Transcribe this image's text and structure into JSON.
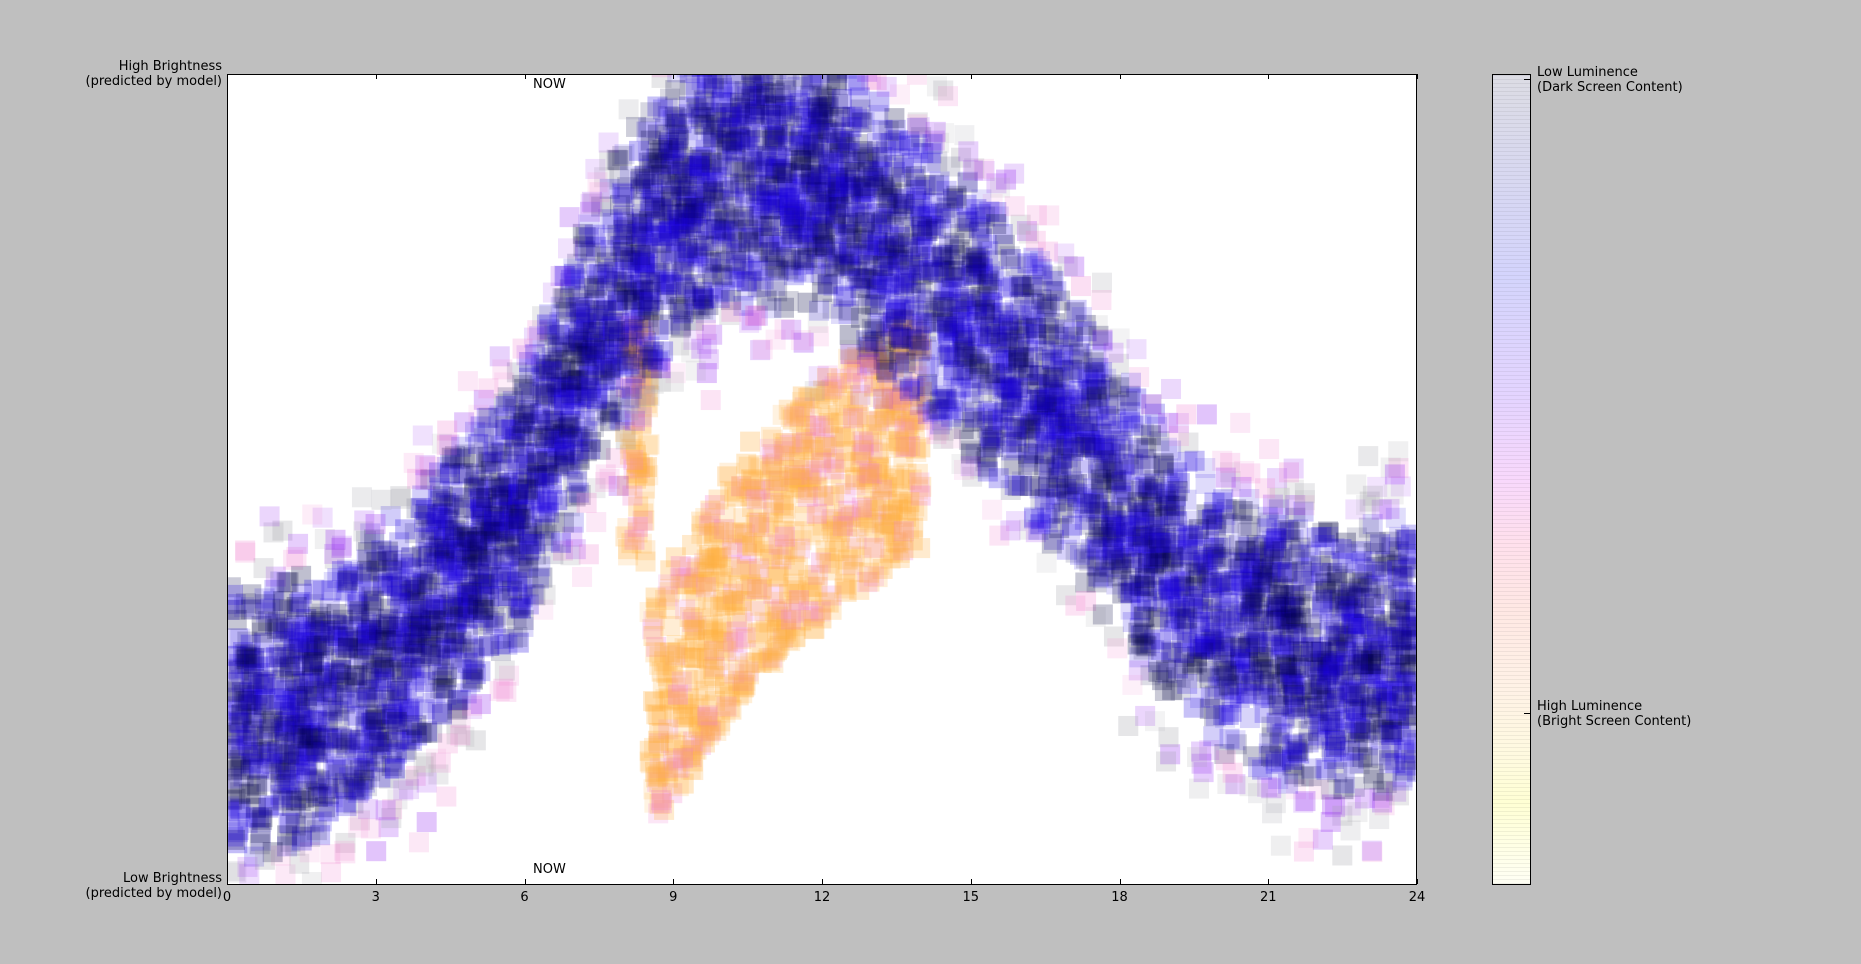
{
  "chart_data": {
    "type": "heatmap",
    "xlim": [
      0,
      24
    ],
    "xticks": [
      "0",
      "3",
      "6",
      "9",
      "12",
      "15",
      "18",
      "21",
      "24"
    ],
    "ylabel_top": "High Brightness\n(predicted by model)",
    "ylabel_bottom": "Low Brightness\n(predicted by model)",
    "annotations": {
      "now_top": "NOW",
      "now_bottom": "NOW",
      "now_hour": 6.4
    },
    "colorbar": {
      "top_label": "Low Luminence\n(Dark Screen Content)",
      "bottom_label": "High Luminence\n(Bright Screen Content)"
    },
    "dark_content_band": {
      "hours": [
        0,
        2,
        4,
        6,
        7,
        8,
        9,
        10,
        11,
        12,
        13,
        14,
        15,
        16,
        17,
        18,
        19,
        20,
        21,
        22,
        23,
        24
      ],
      "brightness": [
        0.2,
        0.22,
        0.33,
        0.48,
        0.62,
        0.75,
        0.84,
        0.88,
        0.88,
        0.87,
        0.82,
        0.76,
        0.7,
        0.63,
        0.56,
        0.47,
        0.39,
        0.33,
        0.3,
        0.29,
        0.28,
        0.3
      ]
    },
    "bright_content_cluster": {
      "hours": [
        8.5,
        9.5,
        10.5,
        11.5,
        12.5,
        13.5
      ],
      "brightness": [
        0.22,
        0.3,
        0.4,
        0.45,
        0.5,
        0.55
      ]
    },
    "colors": {
      "dark": "#000040",
      "blue": "#1a00e0",
      "purple": "#9020f0",
      "pink": "#f080d0",
      "orange": "#ffb040",
      "gray": "#a0a0a8"
    }
  }
}
